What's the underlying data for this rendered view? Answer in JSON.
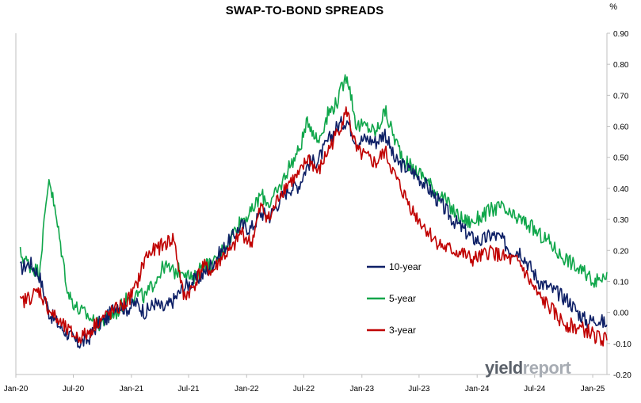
{
  "chart_data": {
    "type": "line",
    "title": "SWAP-TO-BOND SPREADS",
    "y_unit": "%",
    "ylim": [
      -0.2,
      0.9
    ],
    "y_ticks": [
      "0.90",
      "0.80",
      "0.70",
      "0.60",
      "0.50",
      "0.40",
      "0.30",
      "0.20",
      "0.10",
      "0.00",
      "-0.10",
      "-0.20"
    ],
    "y_tick_values": [
      0.9,
      0.8,
      0.7,
      0.6,
      0.5,
      0.4,
      0.3,
      0.2,
      0.1,
      0.0,
      -0.1,
      -0.2
    ],
    "x_ticks": [
      "Jan-20",
      "Jul-20",
      "Jan-21",
      "Jul-21",
      "Jan-22",
      "Jul-22",
      "Jan-23",
      "Jul-23",
      "Jan-24",
      "Jul-24",
      "Jan-25"
    ],
    "xlim": [
      "2020-01-01",
      "2025-02-15"
    ],
    "grid": false,
    "legend_position": "lower-middle",
    "series": [
      {
        "name": "10-year",
        "color": "#0d1f66",
        "x": [
          "2020-01",
          "2020-02",
          "2020-03",
          "2020-04",
          "2020-05",
          "2020-06",
          "2020-07",
          "2020-08",
          "2020-09",
          "2020-10",
          "2020-11",
          "2020-12",
          "2021-01",
          "2021-02",
          "2021-03",
          "2021-04",
          "2021-05",
          "2021-06",
          "2021-07",
          "2021-08",
          "2021-09",
          "2021-10",
          "2021-11",
          "2021-12",
          "2022-01",
          "2022-02",
          "2022-03",
          "2022-04",
          "2022-05",
          "2022-06",
          "2022-07",
          "2022-08",
          "2022-09",
          "2022-10",
          "2022-11",
          "2022-12",
          "2023-01",
          "2023-02",
          "2023-03",
          "2023-04",
          "2023-05",
          "2023-06",
          "2023-07",
          "2023-08",
          "2023-09",
          "2023-10",
          "2023-11",
          "2023-12",
          "2024-01",
          "2024-02",
          "2024-03",
          "2024-04",
          "2024-05",
          "2024-06",
          "2024-07",
          "2024-08",
          "2024-09",
          "2024-10",
          "2024-11",
          "2024-12",
          "2025-01",
          "2025-02"
        ],
        "values": [
          0.14,
          0.16,
          0.12,
          0.0,
          -0.04,
          -0.07,
          -0.1,
          -0.09,
          -0.04,
          -0.02,
          0.03,
          0.01,
          0.03,
          0.0,
          0.03,
          0.01,
          0.04,
          0.08,
          0.1,
          0.12,
          0.16,
          0.2,
          0.24,
          0.28,
          0.27,
          0.32,
          0.31,
          0.36,
          0.4,
          0.41,
          0.48,
          0.49,
          0.55,
          0.6,
          0.62,
          0.55,
          0.56,
          0.55,
          0.58,
          0.49,
          0.47,
          0.45,
          0.42,
          0.38,
          0.34,
          0.3,
          0.27,
          0.24,
          0.23,
          0.25,
          0.24,
          0.2,
          0.2,
          0.15,
          0.1,
          0.08,
          0.06,
          0.04,
          0.0,
          -0.03,
          -0.02,
          -0.04
        ]
      },
      {
        "name": "5-year",
        "color": "#0fa64a",
        "x": [
          "2020-01",
          "2020-02",
          "2020-03",
          "2020-04",
          "2020-05",
          "2020-06",
          "2020-07",
          "2020-08",
          "2020-09",
          "2020-10",
          "2020-11",
          "2020-12",
          "2021-01",
          "2021-02",
          "2021-03",
          "2021-04",
          "2021-05",
          "2021-06",
          "2021-07",
          "2021-08",
          "2021-09",
          "2021-10",
          "2021-11",
          "2021-12",
          "2022-01",
          "2022-02",
          "2022-03",
          "2022-04",
          "2022-05",
          "2022-06",
          "2022-07",
          "2022-08",
          "2022-09",
          "2022-10",
          "2022-11",
          "2022-12",
          "2023-01",
          "2023-02",
          "2023-03",
          "2023-04",
          "2023-05",
          "2023-06",
          "2023-07",
          "2023-08",
          "2023-09",
          "2023-10",
          "2023-11",
          "2023-12",
          "2024-01",
          "2024-02",
          "2024-03",
          "2024-04",
          "2024-05",
          "2024-06",
          "2024-07",
          "2024-08",
          "2024-09",
          "2024-10",
          "2024-11",
          "2024-12",
          "2025-01",
          "2025-02"
        ],
        "values": [
          0.19,
          0.15,
          0.13,
          0.44,
          0.26,
          0.06,
          0.01,
          -0.01,
          -0.04,
          -0.02,
          0.0,
          0.04,
          0.06,
          0.05,
          0.1,
          0.15,
          0.13,
          0.14,
          0.1,
          0.16,
          0.15,
          0.2,
          0.25,
          0.3,
          0.32,
          0.38,
          0.35,
          0.4,
          0.47,
          0.52,
          0.62,
          0.55,
          0.64,
          0.68,
          0.77,
          0.6,
          0.6,
          0.58,
          0.65,
          0.56,
          0.49,
          0.46,
          0.44,
          0.4,
          0.37,
          0.33,
          0.3,
          0.29,
          0.31,
          0.33,
          0.34,
          0.31,
          0.3,
          0.28,
          0.25,
          0.23,
          0.19,
          0.17,
          0.14,
          0.12,
          0.1,
          0.13
        ]
      },
      {
        "name": "3-year",
        "color": "#c00000",
        "x": [
          "2020-01",
          "2020-02",
          "2020-03",
          "2020-04",
          "2020-05",
          "2020-06",
          "2020-07",
          "2020-08",
          "2020-09",
          "2020-10",
          "2020-11",
          "2020-12",
          "2021-01",
          "2021-02",
          "2021-03",
          "2021-04",
          "2021-05",
          "2021-06",
          "2021-07",
          "2021-08",
          "2021-09",
          "2021-10",
          "2021-11",
          "2021-12",
          "2022-01",
          "2022-02",
          "2022-03",
          "2022-04",
          "2022-05",
          "2022-06",
          "2022-07",
          "2022-08",
          "2022-09",
          "2022-10",
          "2022-11",
          "2022-12",
          "2023-01",
          "2023-02",
          "2023-03",
          "2023-04",
          "2023-05",
          "2023-06",
          "2023-07",
          "2023-08",
          "2023-09",
          "2023-10",
          "2023-11",
          "2023-12",
          "2024-01",
          "2024-02",
          "2024-03",
          "2024-04",
          "2024-05",
          "2024-06",
          "2024-07",
          "2024-08",
          "2024-09",
          "2024-10",
          "2024-11",
          "2024-12",
          "2025-01",
          "2025-02"
        ],
        "values": [
          0.03,
          0.05,
          0.07,
          0.01,
          -0.03,
          -0.06,
          -0.08,
          -0.07,
          -0.03,
          -0.01,
          0.01,
          0.03,
          0.08,
          0.18,
          0.2,
          0.22,
          0.24,
          0.05,
          0.08,
          0.15,
          0.13,
          0.18,
          0.2,
          0.26,
          0.22,
          0.34,
          0.3,
          0.38,
          0.42,
          0.44,
          0.5,
          0.45,
          0.52,
          0.58,
          0.65,
          0.52,
          0.5,
          0.48,
          0.52,
          0.44,
          0.38,
          0.32,
          0.28,
          0.24,
          0.21,
          0.2,
          0.19,
          0.17,
          0.18,
          0.2,
          0.18,
          0.17,
          0.16,
          0.1,
          0.05,
          0.02,
          -0.02,
          -0.04,
          -0.05,
          -0.06,
          -0.08,
          -0.09
        ]
      }
    ],
    "annotations": [
      "yieldreport"
    ]
  }
}
